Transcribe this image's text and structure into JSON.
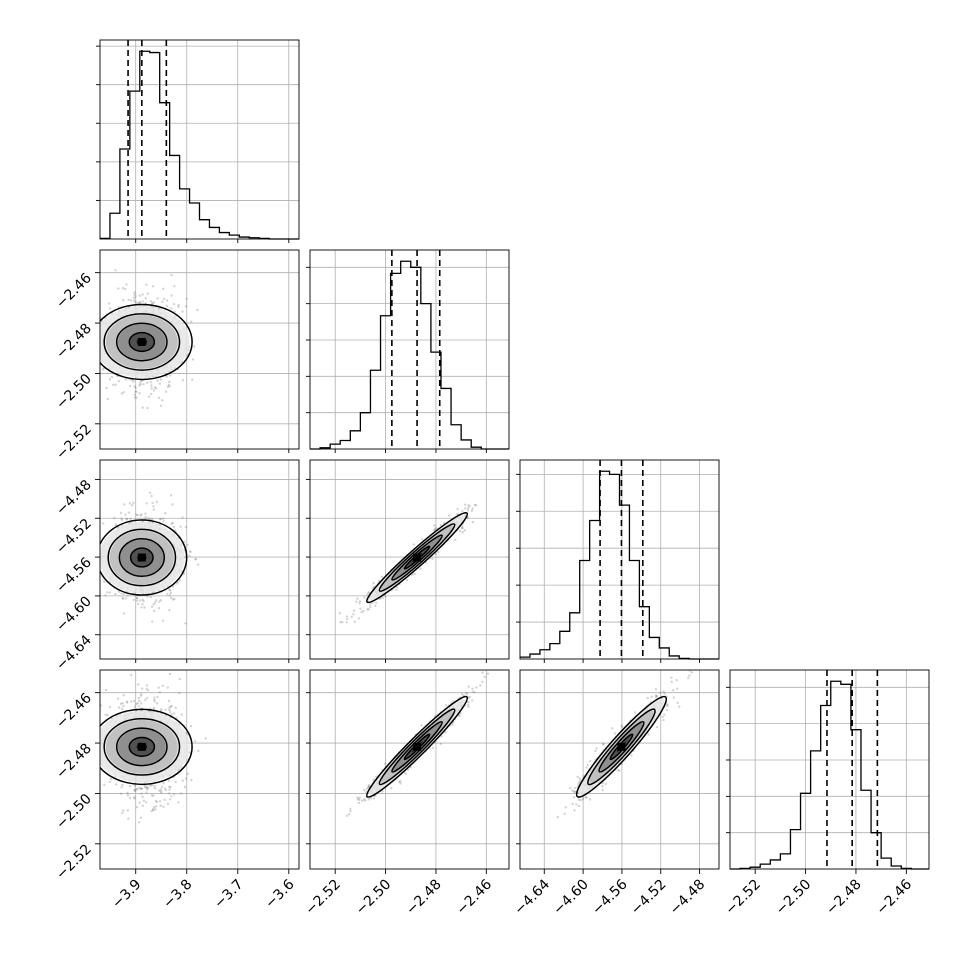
{
  "chart_data": {
    "type": "corner",
    "parameters": [
      {
        "index": 0,
        "range": [
          -3.97,
          -3.58
        ],
        "ticks": [
          -3.9,
          -3.8,
          -3.7,
          -3.6
        ],
        "tick_labels": [
          "−3.9",
          "−3.8",
          "−3.7",
          "−3.6"
        ],
        "quantiles": [
          -3.915,
          -3.888,
          -3.84
        ],
        "hist": {
          "edges_start": -3.97,
          "bin_width": 0.0195,
          "counts": [
            1,
            40,
            140,
            230,
            292,
            290,
            212,
            130,
            78,
            56,
            30,
            18,
            10,
            6,
            3,
            2,
            1,
            0,
            0,
            0
          ]
        }
      },
      {
        "index": 1,
        "range": [
          -2.53,
          -2.451
        ],
        "ticks": [
          -2.52,
          -2.5,
          -2.48,
          -2.46
        ],
        "tick_labels": [
          "−2.52",
          "−2.50",
          "−2.48",
          "−2.46"
        ],
        "quantiles": [
          -2.4975,
          -2.4875,
          -2.4785
        ],
        "hist": {
          "edges_start": -2.53,
          "bin_width": 0.004,
          "counts": [
            0,
            2,
            8,
            14,
            30,
            60,
            130,
            220,
            290,
            310,
            300,
            240,
            160,
            100,
            40,
            15,
            3,
            0,
            0,
            0
          ]
        }
      },
      {
        "index": 2,
        "range": [
          -4.665,
          -4.46
        ],
        "ticks": [
          -4.64,
          -4.6,
          -4.56,
          -4.52,
          -4.48
        ],
        "tick_labels": [
          "−4.64",
          "−4.60",
          "−4.56",
          "−4.52",
          "−4.48"
        ],
        "quantiles": [
          -4.5825,
          -4.5605,
          -4.5385
        ],
        "hist": {
          "edges_start": -4.665,
          "bin_width": 0.01025,
          "counts": [
            3,
            8,
            15,
            25,
            45,
            75,
            160,
            225,
            305,
            300,
            250,
            160,
            85,
            35,
            18,
            5,
            1,
            0,
            0,
            0
          ]
        }
      },
      {
        "index": 3,
        "range": [
          -2.53,
          -2.451
        ],
        "ticks": [
          -2.52,
          -2.5,
          -2.48,
          -2.46
        ],
        "tick_labels": [
          "−2.52",
          "−2.50",
          "−2.48",
          "−2.46"
        ],
        "quantiles": [
          -2.4915,
          -2.4815,
          -2.4715
        ],
        "hist": {
          "edges_start": -2.53,
          "bin_width": 0.004,
          "counts": [
            0,
            1,
            3,
            8,
            15,
            25,
            65,
            125,
            195,
            270,
            310,
            305,
            230,
            130,
            60,
            18,
            5,
            1,
            0,
            0
          ]
        }
      }
    ],
    "panels_2d": [
      {
        "x": 0,
        "y": 1,
        "mean": [
          -3.888,
          -2.4875
        ],
        "sd": [
          0.035,
          0.0095
        ],
        "corr": 0.0
      },
      {
        "x": 0,
        "y": 2,
        "mean": [
          -3.888,
          -4.5605
        ],
        "sd": [
          0.035,
          0.022
        ],
        "corr": 0.0
      },
      {
        "x": 0,
        "y": 3,
        "mean": [
          -3.888,
          -2.4815
        ],
        "sd": [
          0.035,
          0.0095
        ],
        "corr": 0.0
      },
      {
        "x": 1,
        "y": 2,
        "mean": [
          -2.4875,
          -4.5605
        ],
        "sd": [
          0.0095,
          0.022
        ],
        "corr": 0.97
      },
      {
        "x": 1,
        "y": 3,
        "mean": [
          -2.4875,
          -2.4815
        ],
        "sd": [
          0.0095,
          0.0095
        ],
        "corr": 0.97
      },
      {
        "x": 2,
        "y": 3,
        "mean": [
          -4.5605,
          -2.4815
        ],
        "sd": [
          0.022,
          0.0095
        ],
        "corr": 0.95
      }
    ],
    "contour_levels_sigma": [
      0.5,
      1.0,
      1.5,
      2.0
    ],
    "grid": true,
    "colors": {
      "line": "#000000",
      "scatter": "#808080",
      "grid": "#b0b0b0"
    }
  }
}
